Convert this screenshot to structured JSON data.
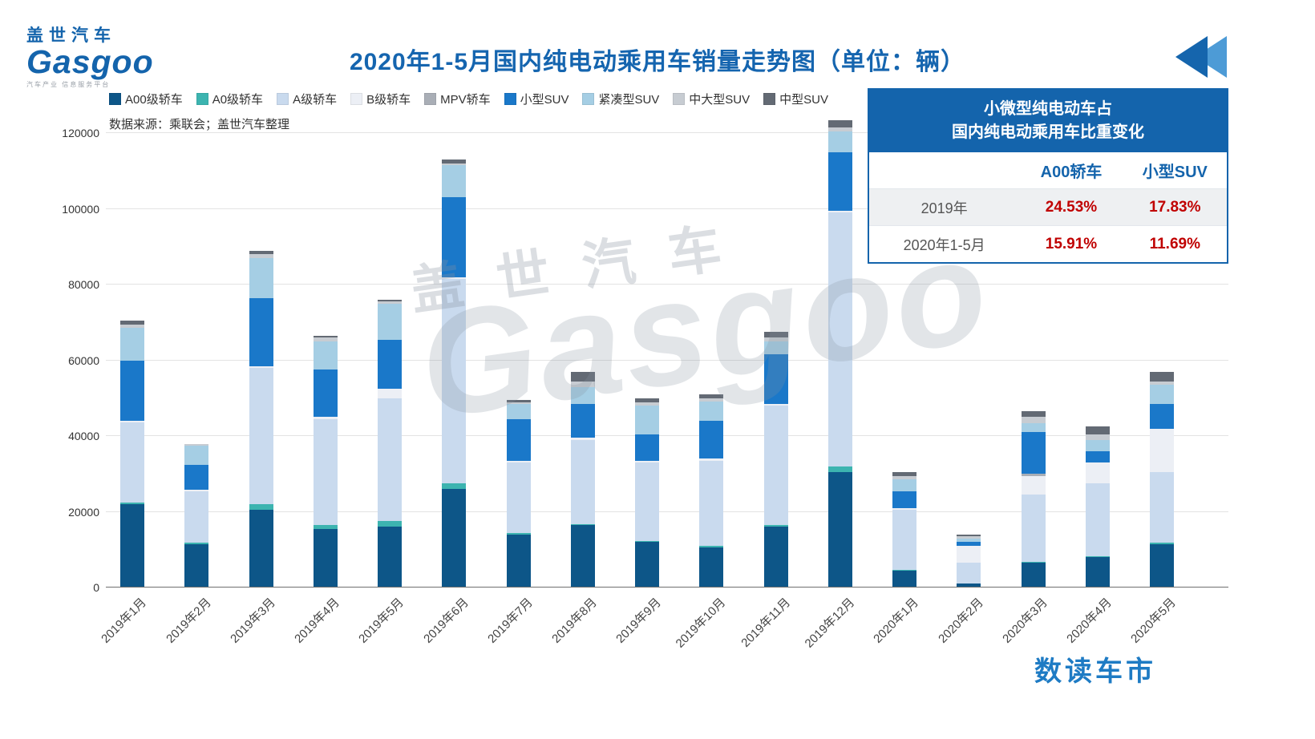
{
  "header": {
    "logo_cn": "盖世汽车",
    "logo_en": "Gasgoo",
    "logo_tagline": "汽车产业 信息服务平台",
    "title": "2020年1-5月国内纯电动乘用车销量走势图（单位：辆）"
  },
  "source_note": "数据来源：乘联会；盖世汽车整理",
  "watermark": {
    "cn": "盖世汽车",
    "en": "Gasgoo"
  },
  "footer": {
    "brand": "数读车市"
  },
  "chart_data": {
    "type": "bar",
    "stacked": true,
    "title": "2020年1-5月国内纯电动乘用车销量走势图（单位：辆）",
    "xlabel": "",
    "ylabel": "",
    "y_axis": {
      "min": 0,
      "max": 120000,
      "step": 20000
    },
    "grid": true,
    "legend_position": "top",
    "categories": [
      "2019年1月",
      "2019年2月",
      "2019年3月",
      "2019年4月",
      "2019年5月",
      "2019年6月",
      "2019年7月",
      "2019年8月",
      "2019年9月",
      "2019年10月",
      "2019年11月",
      "2019年12月",
      "2020年1月",
      "2020年2月",
      "2020年3月",
      "2020年4月",
      "2020年5月"
    ],
    "series": [
      {
        "name": "A00级轿车",
        "color": "#0d5688",
        "values": [
          22000,
          11500,
          20500,
          15500,
          16000,
          26000,
          14000,
          16500,
          12000,
          10500,
          16000,
          30500,
          4500,
          1000,
          6500,
          8000,
          11500
        ]
      },
      {
        "name": "A0级轿车",
        "color": "#3cb4b0",
        "values": [
          500,
          300,
          1500,
          1000,
          1500,
          1500,
          300,
          300,
          300,
          500,
          500,
          1500,
          200,
          100,
          300,
          300,
          300
        ]
      },
      {
        "name": "A级轿车",
        "color": "#c9daee",
        "values": [
          21000,
          13700,
          36000,
          28000,
          32500,
          54000,
          18700,
          22200,
          20700,
          22500,
          31500,
          67000,
          15800,
          5500,
          17700,
          19200,
          18700
        ]
      },
      {
        "name": "B级轿车",
        "color": "#eceff5",
        "values": [
          500,
          300,
          500,
          500,
          2500,
          500,
          500,
          500,
          500,
          500,
          500,
          500,
          500,
          4400,
          5000,
          5500,
          11500
        ]
      },
      {
        "name": "MPV轿车",
        "color": "#a9aeb6",
        "values": [
          0,
          0,
          0,
          0,
          0,
          0,
          0,
          0,
          0,
          0,
          0,
          0,
          0,
          0,
          500,
          0,
          0
        ]
      },
      {
        "name": "小型SUV",
        "color": "#1a78c9",
        "values": [
          16000,
          6500,
          18000,
          12500,
          13000,
          21000,
          11000,
          9000,
          7000,
          10000,
          13000,
          15500,
          4500,
          1000,
          11000,
          3000,
          6500
        ]
      },
      {
        "name": "紧凑型SUV",
        "color": "#a5cee4",
        "values": [
          8500,
          5200,
          10500,
          7500,
          9500,
          8500,
          4000,
          4500,
          7500,
          5000,
          3500,
          5500,
          3000,
          1000,
          2500,
          3000,
          5000
        ]
      },
      {
        "name": "中大型SUV",
        "color": "#c7ccd2",
        "values": [
          1000,
          300,
          1000,
          1000,
          500,
          500,
          500,
          1500,
          1000,
          1000,
          1000,
          1000,
          1000,
          500,
          1500,
          1500,
          1000
        ]
      },
      {
        "name": "中型SUV",
        "color": "#636a74",
        "values": [
          1000,
          200,
          1000,
          500,
          500,
          1000,
          500,
          2500,
          1000,
          1000,
          1500,
          2000,
          1000,
          500,
          1500,
          2000,
          2500
        ]
      }
    ]
  },
  "table": {
    "title_line1": "小微型纯电动车占",
    "title_line2": "国内纯电动乘用车比重变化",
    "columns": [
      "",
      "A00轿车",
      "小型SUV"
    ],
    "rows": [
      {
        "label": "2019年",
        "values": [
          "24.53%",
          "17.83%"
        ]
      },
      {
        "label": "2020年1-5月",
        "values": [
          "15.91%",
          "11.69%"
        ]
      }
    ]
  }
}
